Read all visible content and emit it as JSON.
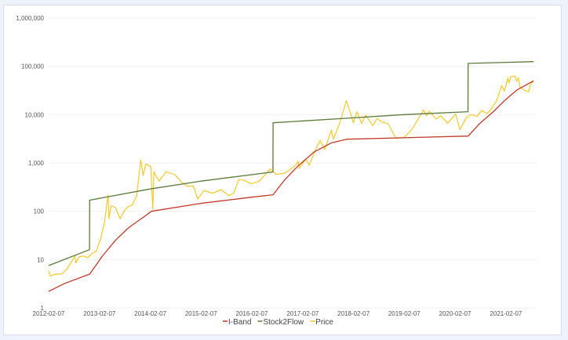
{
  "chart_data": {
    "type": "line",
    "title": "",
    "xlabel": "",
    "ylabel": "",
    "y_scale": "log",
    "ylim": [
      1,
      1000000
    ],
    "xlim": [
      "2012-02-07",
      "2021-09-10"
    ],
    "grid": "horizontal",
    "legend_position": "bottom",
    "y_ticks": [
      "1",
      "10",
      "100",
      "1,000",
      "10,000",
      "100,000",
      "1,000,000"
    ],
    "x_ticks": [
      "2012-02-07",
      "2013-02-07",
      "2014-02-07",
      "2015-02-07",
      "2016-02-07",
      "2017-02-07",
      "2018-02-07",
      "2019-02-07",
      "2020-02-07",
      "2021-02-07"
    ],
    "series": [
      {
        "name": "I-Band",
        "color": "#c0392b",
        "points": [
          [
            "2012-02-07",
            2.2
          ],
          [
            "2012-06-01",
            3.2
          ],
          [
            "2012-11-28",
            5
          ],
          [
            "2013-03-01",
            12
          ],
          [
            "2013-06-01",
            25
          ],
          [
            "2013-09-01",
            45
          ],
          [
            "2014-01-01",
            80
          ],
          [
            "2014-02-15",
            100
          ],
          [
            "2015-02-01",
            145
          ],
          [
            "2016-02-01",
            195
          ],
          [
            "2016-07-09",
            220
          ],
          [
            "2016-10-01",
            450
          ],
          [
            "2017-01-01",
            850
          ],
          [
            "2017-05-01",
            1700
          ],
          [
            "2017-09-01",
            2600
          ],
          [
            "2017-12-20",
            3100
          ],
          [
            "2019-01-01",
            3300
          ],
          [
            "2020-05-11",
            3600
          ],
          [
            "2020-08-01",
            6500
          ],
          [
            "2020-11-01",
            11000
          ],
          [
            "2021-02-01",
            20000
          ],
          [
            "2021-05-01",
            33000
          ],
          [
            "2021-08-25",
            50000
          ]
        ]
      },
      {
        "name": "Stock2Flow",
        "color": "#5a7a3a",
        "points": [
          [
            "2012-02-07",
            7.5
          ],
          [
            "2012-11-27",
            16
          ],
          [
            "2012-11-28",
            170
          ],
          [
            "2014-02-07",
            290
          ],
          [
            "2015-02-07",
            420
          ],
          [
            "2016-07-08",
            650
          ],
          [
            "2016-07-09",
            6800
          ],
          [
            "2018-02-07",
            8600
          ],
          [
            "2019-02-07",
            10000
          ],
          [
            "2020-05-10",
            11500
          ],
          [
            "2020-05-11",
            115000
          ],
          [
            "2021-08-25",
            125000
          ]
        ]
      },
      {
        "name": "Price",
        "color": "#f5c518",
        "points": [
          [
            "2012-02-07",
            5.8
          ],
          [
            "2012-02-20",
            4.5
          ],
          [
            "2012-03-15",
            4.9
          ],
          [
            "2012-04-15",
            5
          ],
          [
            "2012-05-15",
            5.1
          ],
          [
            "2012-06-15",
            6.3
          ],
          [
            "2012-07-15",
            8.5
          ],
          [
            "2012-08-15",
            12
          ],
          [
            "2012-08-20",
            8.5
          ],
          [
            "2012-09-15",
            11.5
          ],
          [
            "2012-10-15",
            11.8
          ],
          [
            "2012-11-15",
            11
          ],
          [
            "2012-12-15",
            13.3
          ],
          [
            "2013-01-15",
            15
          ],
          [
            "2013-02-15",
            27
          ],
          [
            "2013-03-15",
            60
          ],
          [
            "2013-04-09",
            220
          ],
          [
            "2013-04-16",
            70
          ],
          [
            "2013-05-01",
            130
          ],
          [
            "2013-06-01",
            120
          ],
          [
            "2013-07-05",
            70
          ],
          [
            "2013-08-01",
            100
          ],
          [
            "2013-09-01",
            125
          ],
          [
            "2013-10-01",
            135
          ],
          [
            "2013-11-01",
            210
          ],
          [
            "2013-11-30",
            1150
          ],
          [
            "2013-12-18",
            550
          ],
          [
            "2014-01-05",
            950
          ],
          [
            "2014-02-10",
            850
          ],
          [
            "2014-02-25",
            110
          ],
          [
            "2014-03-05",
            650
          ],
          [
            "2014-04-10",
            420
          ],
          [
            "2014-06-01",
            650
          ],
          [
            "2014-08-01",
            580
          ],
          [
            "2014-09-20",
            400
          ],
          [
            "2014-11-01",
            330
          ],
          [
            "2014-12-15",
            330
          ],
          [
            "2015-01-14",
            180
          ],
          [
            "2015-03-01",
            270
          ],
          [
            "2015-05-01",
            235
          ],
          [
            "2015-07-01",
            280
          ],
          [
            "2015-08-25",
            210
          ],
          [
            "2015-10-01",
            240
          ],
          [
            "2015-11-04",
            450
          ],
          [
            "2015-12-15",
            440
          ],
          [
            "2016-02-01",
            370
          ],
          [
            "2016-04-01",
            420
          ],
          [
            "2016-06-17",
            750
          ],
          [
            "2016-08-01",
            580
          ],
          [
            "2016-10-01",
            610
          ],
          [
            "2016-12-20",
            900
          ],
          [
            "2017-01-05",
            1100
          ],
          [
            "2017-01-12",
            780
          ],
          [
            "2017-03-01",
            1200
          ],
          [
            "2017-03-25",
            900
          ],
          [
            "2017-05-20",
            2200
          ],
          [
            "2017-06-12",
            2900
          ],
          [
            "2017-07-15",
            1900
          ],
          [
            "2017-09-01",
            4800
          ],
          [
            "2017-09-15",
            3100
          ],
          [
            "2017-11-01",
            6800
          ],
          [
            "2017-12-17",
            19500
          ],
          [
            "2018-01-15",
            11000
          ],
          [
            "2018-02-06",
            6800
          ],
          [
            "2018-03-05",
            11500
          ],
          [
            "2018-04-06",
            6600
          ],
          [
            "2018-05-05",
            9800
          ],
          [
            "2018-06-25",
            5900
          ],
          [
            "2018-07-25",
            8300
          ],
          [
            "2018-09-01",
            7000
          ],
          [
            "2018-10-15",
            6500
          ],
          [
            "2018-11-25",
            3800
          ],
          [
            "2018-12-15",
            3200
          ],
          [
            "2019-02-07",
            3400
          ],
          [
            "2019-04-05",
            5000
          ],
          [
            "2019-06-26",
            12500
          ],
          [
            "2019-07-17",
            9500
          ],
          [
            "2019-08-05",
            11800
          ],
          [
            "2019-09-25",
            8100
          ],
          [
            "2019-10-27",
            9500
          ],
          [
            "2019-12-17",
            6700
          ],
          [
            "2020-02-12",
            10300
          ],
          [
            "2020-03-13",
            4900
          ],
          [
            "2020-04-30",
            8800
          ],
          [
            "2020-06-01",
            10000
          ],
          [
            "2020-07-15",
            9200
          ],
          [
            "2020-08-17",
            12200
          ],
          [
            "2020-09-25",
            10500
          ],
          [
            "2020-10-25",
            13100
          ],
          [
            "2020-12-01",
            19000
          ],
          [
            "2021-01-08",
            40000
          ],
          [
            "2021-01-27",
            30500
          ],
          [
            "2021-02-21",
            57000
          ],
          [
            "2021-02-28",
            45000
          ],
          [
            "2021-03-13",
            61000
          ],
          [
            "2021-04-14",
            63000
          ],
          [
            "2021-04-25",
            49000
          ],
          [
            "2021-05-08",
            58000
          ],
          [
            "2021-05-19",
            37000
          ],
          [
            "2021-06-22",
            31500
          ],
          [
            "2021-07-20",
            30000
          ],
          [
            "2021-08-01",
            41000
          ],
          [
            "2021-08-14",
            47500
          ],
          [
            "2021-08-25",
            47000
          ]
        ]
      }
    ]
  }
}
